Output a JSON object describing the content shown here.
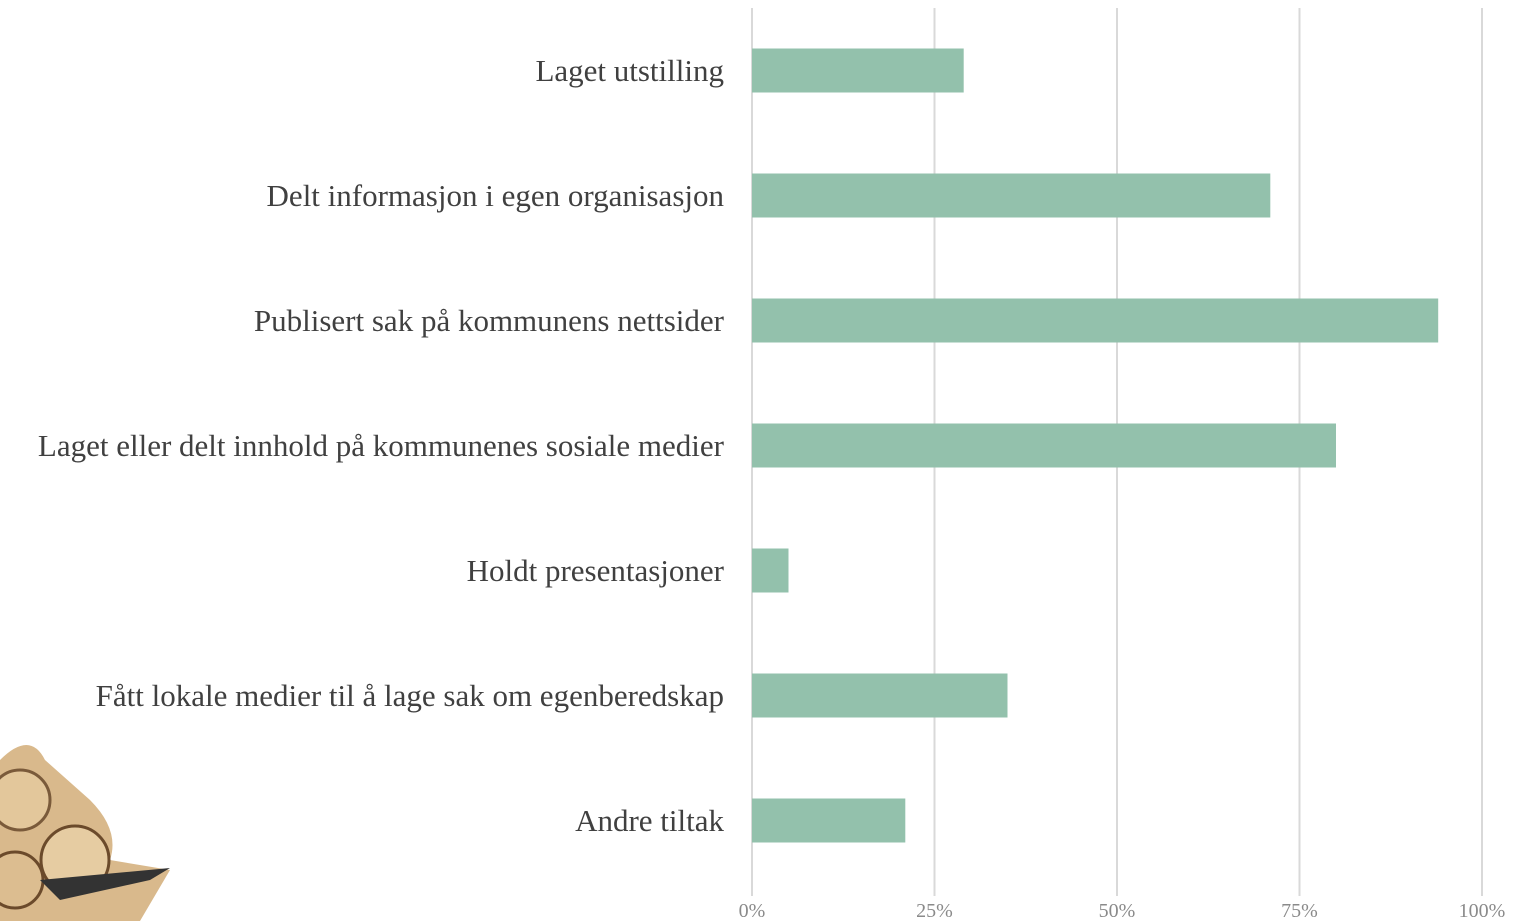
{
  "chart_data": {
    "type": "bar",
    "orientation": "horizontal",
    "categories": [
      "Laget utstilling",
      "Delt informasjon i egen organisasjon",
      "Publisert sak på kommunens nettsider",
      "Laget eller delt innhold på kommunenes sosiale medier",
      "Holdt presentasjoner",
      "Fått lokale medier til å lage sak om egenberedskap",
      "Andre tiltak"
    ],
    "values": [
      29,
      71,
      94,
      80,
      5,
      35,
      21
    ],
    "color": "#93c1ac",
    "xlim": [
      0,
      100
    ],
    "xticks": [
      {
        "value": 0,
        "label": "0%"
      },
      {
        "value": 25,
        "label": "25%"
      },
      {
        "value": 50,
        "label": "50%"
      },
      {
        "value": 75,
        "label": "75%"
      },
      {
        "value": 100,
        "label": "100%"
      }
    ],
    "grid": true
  }
}
